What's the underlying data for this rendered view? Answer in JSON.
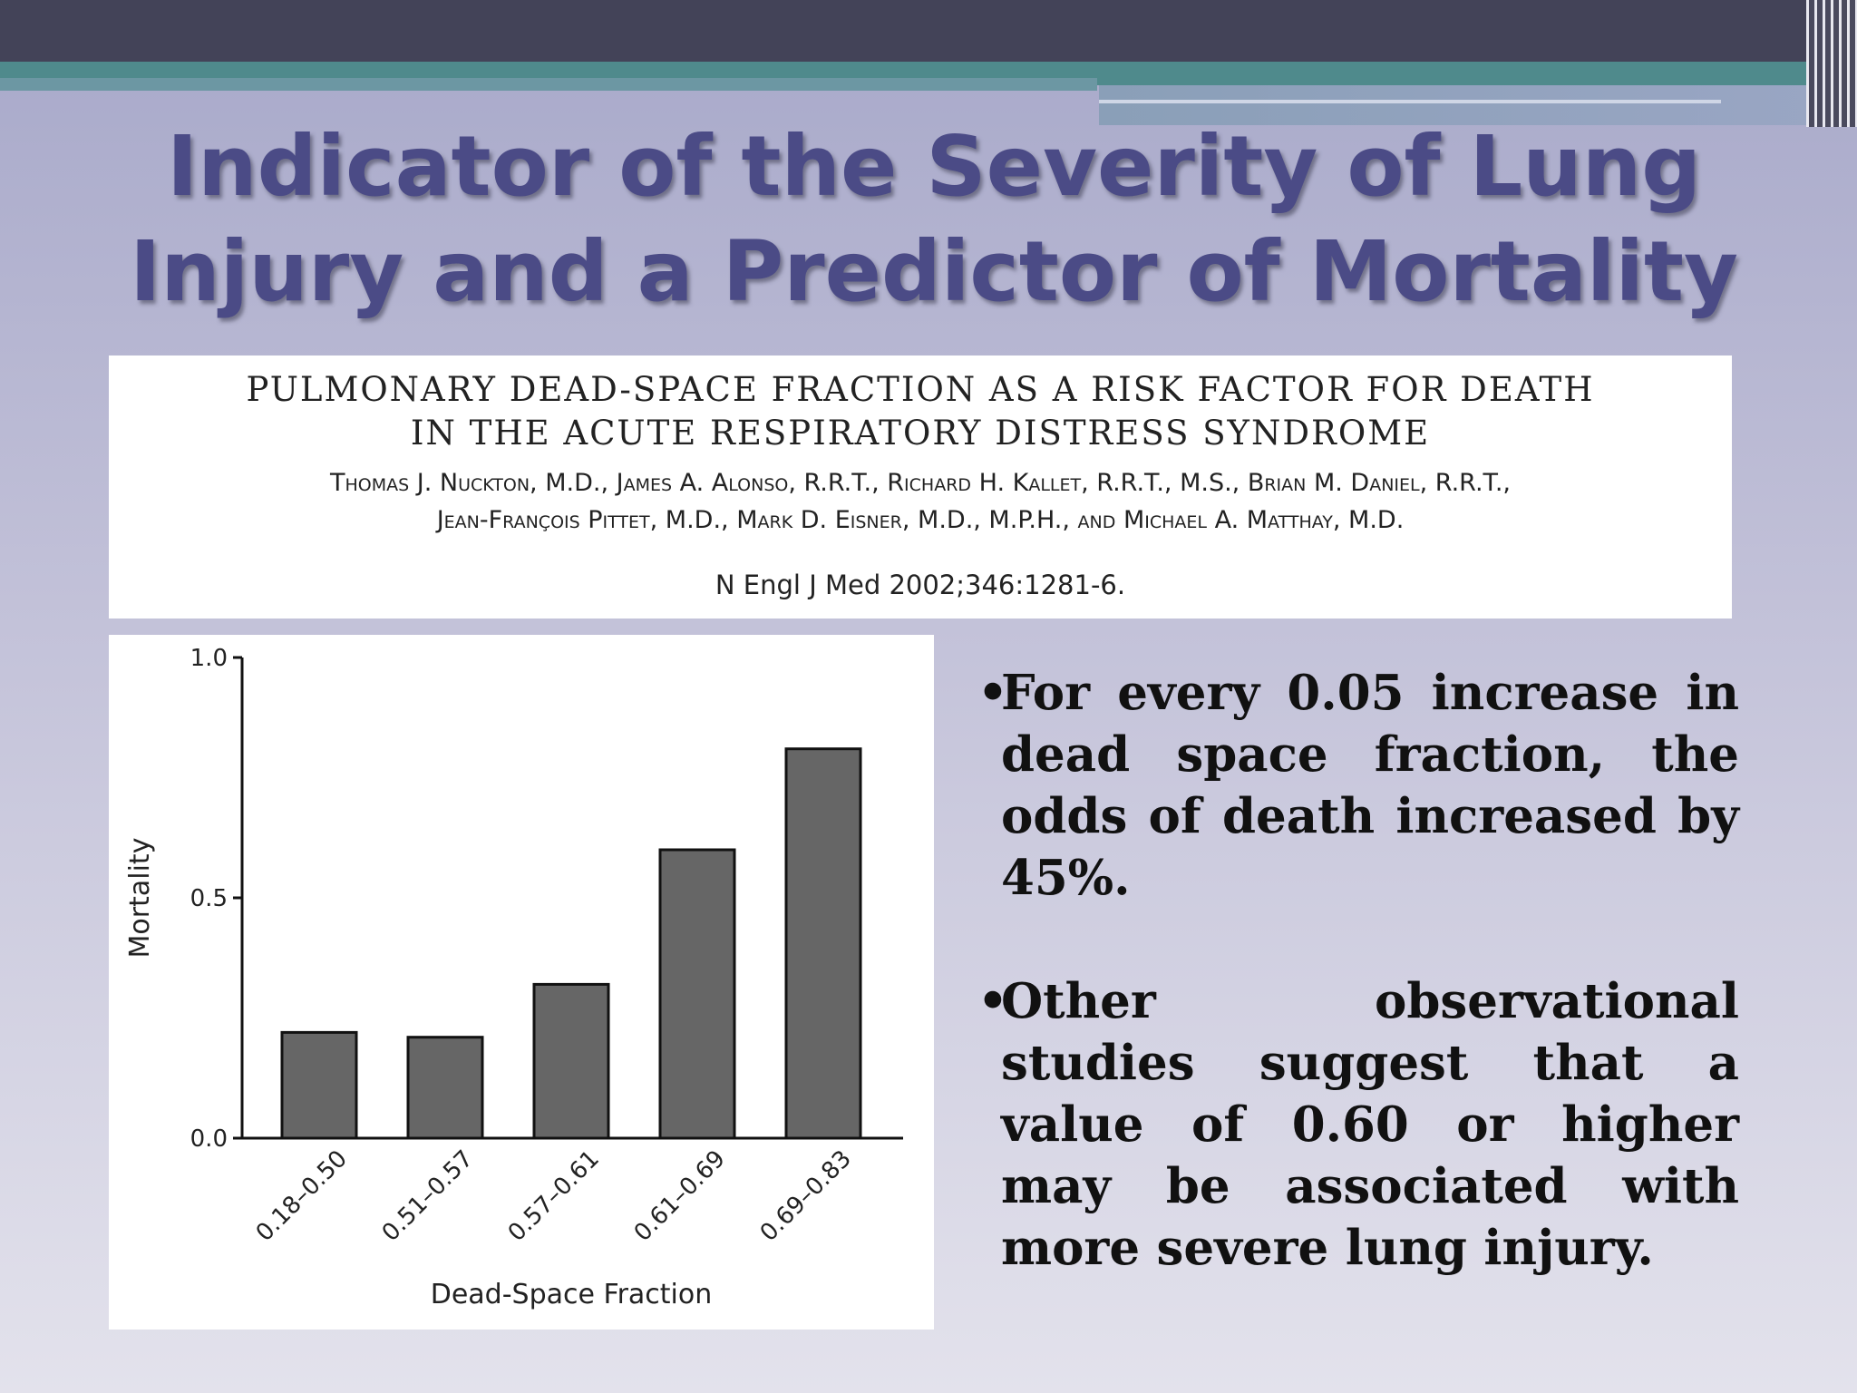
{
  "slide": {
    "title": "Indicator of the Severity of Lung Injury and a Predictor of Mortality"
  },
  "citation": {
    "title_line1": "PULMONARY DEAD-SPACE FRACTION AS A RISK FACTOR FOR DEATH",
    "title_line2": "IN THE ACUTE RESPIRATORY DISTRESS SYNDROME",
    "authors_line1": "Thomas J. Nuckton, M.D., James A. Alonso, R.R.T., Richard H. Kallet, R.R.T., M.S., Brian M. Daniel, R.R.T.,",
    "authors_line2": "Jean-François Pittet, M.D., Mark D. Eisner, M.D., M.P.H., and Michael A. Matthay, M.D.",
    "journal": "N Engl J Med 2002;346:1281-6."
  },
  "bullets": [
    {
      "marker": "•",
      "text": "For every 0.05 increase in dead space fraction, the odds of death increased by 45%."
    },
    {
      "marker": "•",
      "text": "Other observational studies suggest that a value of 0.60 or higher may be associated with more severe lung injury."
    }
  ],
  "chart_data": {
    "type": "bar",
    "categories": [
      "0.18–0.50",
      "0.51–0.57",
      "0.57–0.61",
      "0.61–0.69",
      "0.69–0.83"
    ],
    "values": [
      0.22,
      0.21,
      0.32,
      0.6,
      0.81
    ],
    "xlabel": "Dead-Space Fraction",
    "ylabel": "Mortality",
    "ylim": [
      0.0,
      1.0
    ],
    "yticks": [
      "0.0",
      "0.5",
      "1.0"
    ],
    "bar_color": "#666666",
    "grid": false
  }
}
